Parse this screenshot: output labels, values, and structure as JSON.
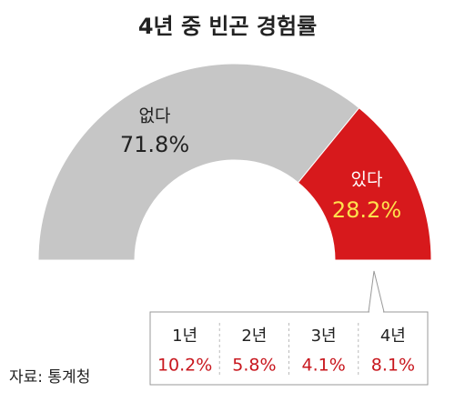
{
  "chart_data": {
    "type": "pie",
    "semicircle": true,
    "title": "4년 중 빈곤 경험률",
    "categories": [
      "없다",
      "있다"
    ],
    "values": [
      71.8,
      28.2
    ],
    "value_labels": [
      "71.8%",
      "28.2%"
    ],
    "colors": [
      "#c6c6c6",
      "#d7191c"
    ],
    "breakdown": {
      "categories": [
        "1년",
        "2년",
        "3년",
        "4년"
      ],
      "values": [
        10.2,
        5.8,
        4.1,
        8.1
      ],
      "value_labels": [
        "10.2%",
        "5.8%",
        "4.1%",
        "8.1%"
      ]
    },
    "source": "자료: 통계청"
  }
}
